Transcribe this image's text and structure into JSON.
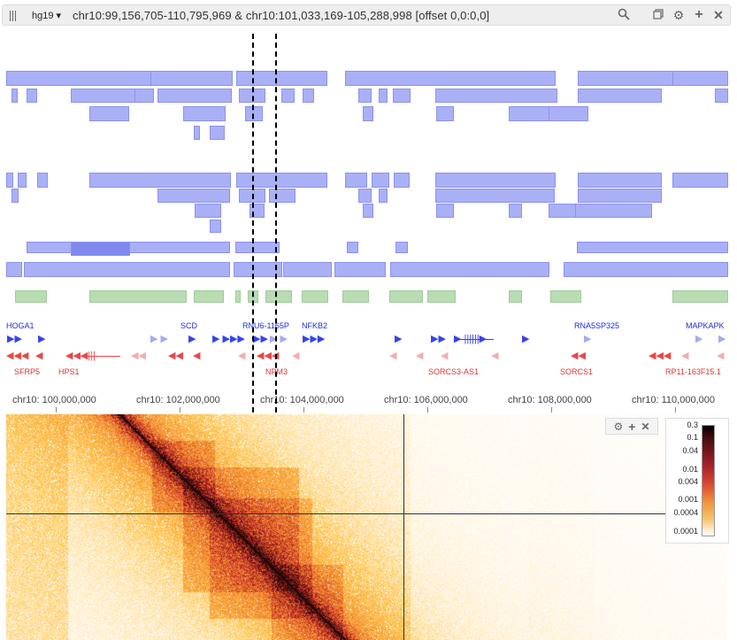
{
  "toolbar": {
    "assembly": "hg19 ▾",
    "locus": "chr10:99,156,705-110,795,969 & chr10:101,033,169-105,288,998 [offset 0,0:0,0]",
    "icons": [
      "search-icon",
      "copy-icon",
      "gear-icon",
      "plus-icon",
      "close-icon"
    ]
  },
  "genes": {
    "forward": [
      "HOGA1",
      "SCD",
      "RNU6-1165P",
      "NFKB2",
      "RNA5SP325",
      "MAPKAPK"
    ],
    "reverse": [
      "SFRP5",
      "HPS1",
      "NPM3",
      "SORCS3-AS1",
      "SORCS1",
      "RP11-163F15.1"
    ]
  },
  "axis": {
    "ticks": [
      "chr10: 100,000,000",
      "chr10: 102,000,000",
      "chr10: 104,000,000",
      "chr10: 106,000,000",
      "chr10: 108,000,000",
      "chr10: 110,000,000"
    ]
  },
  "heatmap": {
    "controls": [
      "gear-icon",
      "plus-icon",
      "close-icon"
    ],
    "colorbar_labels": [
      "0.3",
      "0.1",
      "0.04",
      "0.01",
      "0.004",
      "0.001",
      "0.0004",
      "0.0001"
    ],
    "colors": {
      "low": "#ffffff",
      "mid": "#f4b04a",
      "high": "#c0262a",
      "max": "#000000"
    }
  }
}
